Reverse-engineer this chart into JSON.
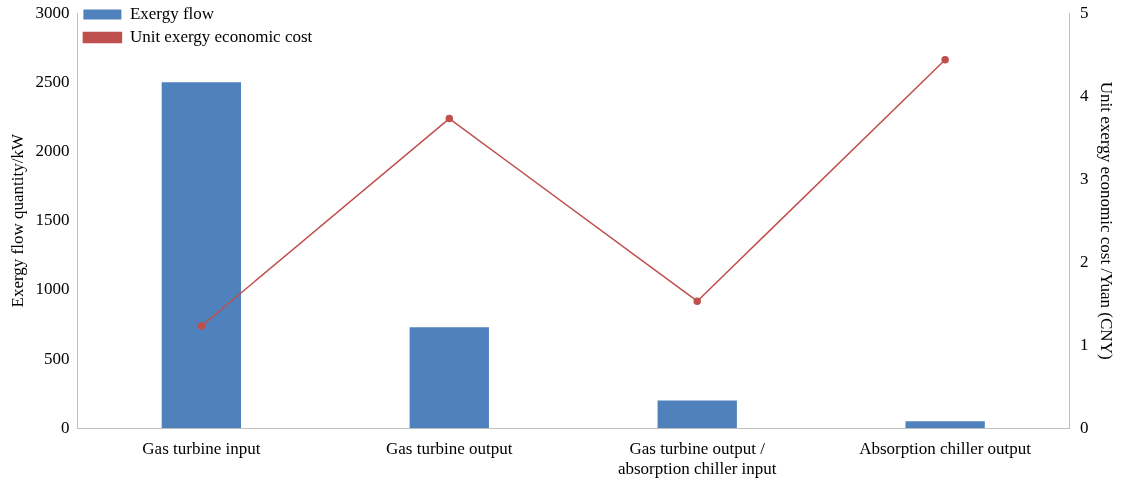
{
  "chart_data": {
    "type": "bar",
    "categories": [
      "Gas turbine input",
      "Gas turbine output",
      "Gas turbine output / absorption chiller input",
      "Absorption chiller output"
    ],
    "series": [
      {
        "name": "Exergy flow",
        "color": "#4f81bd",
        "values": [
          2500,
          730,
          200,
          50
        ]
      },
      {
        "name": "Unit exergy economic cost",
        "type": "line",
        "axis": "y2",
        "color": "#c0504d",
        "values": [
          1.23,
          3.73,
          1.53,
          4.44
        ]
      }
    ],
    "ylabel": "Exergy flow quantity/kW",
    "y2label": "Unit exergy economic cost /Yuan (CNY)",
    "ylim": [
      0,
      3000
    ],
    "yticks": [
      0,
      500,
      1000,
      1500,
      2000,
      2500,
      3000
    ],
    "y2lim": [
      0,
      5
    ],
    "y2ticks": [
      0,
      1,
      2,
      3,
      4,
      5
    ],
    "grid": false,
    "legend": "top left",
    "marker": "circle",
    "line_style": "solid"
  }
}
